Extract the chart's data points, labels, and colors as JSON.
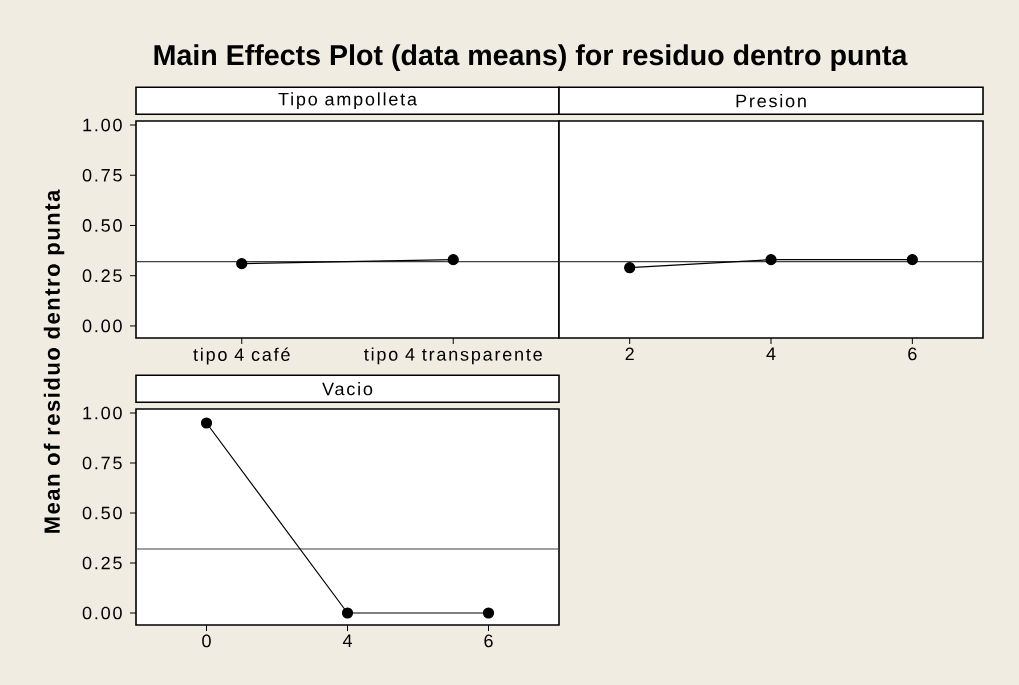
{
  "chart_data": [
    {
      "type": "line",
      "title": "Main Effects Plot (data means) for residuo dentro punta",
      "ylabel": "Mean of residuo dentro punta",
      "xlabel": "Tipo ampolleta",
      "categories": [
        "tipo 4 café",
        "tipo 4 transparente"
      ],
      "values": [
        0.31,
        0.33
      ],
      "color": "#000000",
      "marker": "circle",
      "ylim": [
        -0.06,
        1.02
      ],
      "yticks": [
        {
          "value": 0,
          "label": "0.00"
        },
        {
          "value": 0.25,
          "label": "0.25"
        },
        {
          "value": 0.5,
          "label": "0.50"
        },
        {
          "value": 0.75,
          "label": "0.75"
        },
        {
          "value": 1,
          "label": "1.00"
        }
      ],
      "ref_lines": [
        {
          "axis": "y",
          "value": 0.32,
          "color": "#404040"
        }
      ]
    },
    {
      "type": "line",
      "xlabel": "Presion",
      "categories": [
        "2",
        "4",
        "6"
      ],
      "values": [
        0.29,
        0.33,
        0.33
      ],
      "color": "#000000",
      "marker": "circle",
      "ylim": [
        -0.06,
        1.02
      ],
      "tick_labels": "x",
      "ref_lines": [
        {
          "axis": "y",
          "value": 0.32,
          "color": "#404040"
        }
      ]
    },
    {
      "type": "line",
      "xlabel": "Vacio",
      "categories": [
        "0",
        "4",
        "6"
      ],
      "values": [
        0.95,
        0,
        0
      ],
      "color": "#000000",
      "marker": "circle",
      "ylim": [
        -0.06,
        1.02
      ],
      "yticks": [
        {
          "value": 0,
          "label": "0.00"
        },
        {
          "value": 0.25,
          "label": "0.25"
        },
        {
          "value": 0.5,
          "label": "0.50"
        },
        {
          "value": 0.75,
          "label": "0.75"
        },
        {
          "value": 1,
          "label": "1.00"
        }
      ],
      "ref_lines": [
        {
          "axis": "y",
          "value": 0.32,
          "color": "#404040"
        }
      ]
    }
  ]
}
